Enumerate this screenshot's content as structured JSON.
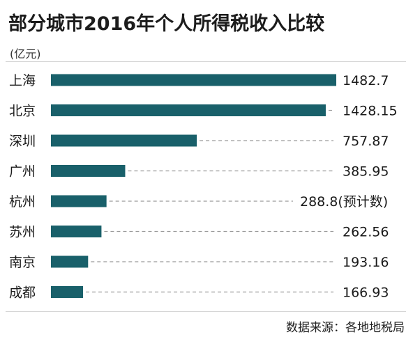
{
  "title": "部分城市2016年个人所得税收入比较",
  "unit_label": "(亿元)",
  "source": "数据来源：各地地税局",
  "colors": {
    "bar": "#19606a",
    "dash": "#9a9a9a",
    "text": "#1a1a1a"
  },
  "chart_data": {
    "type": "bar",
    "orientation": "horizontal",
    "categories": [
      "上海",
      "北京",
      "深圳",
      "广州",
      "杭州",
      "苏州",
      "南京",
      "成都"
    ],
    "values": [
      1482.7,
      1428.15,
      757.87,
      385.95,
      288.8,
      262.56,
      193.16,
      166.93
    ],
    "value_labels": [
      "1482.7",
      "1428.15",
      "757.87",
      "385.95",
      "288.8(预计数)",
      "262.56",
      "193.16",
      "166.93"
    ],
    "title": "部分城市2016年个人所得税收入比较",
    "xlabel": "",
    "ylabel": "",
    "xlim": [
      0,
      1482.7
    ],
    "grid": false
  }
}
